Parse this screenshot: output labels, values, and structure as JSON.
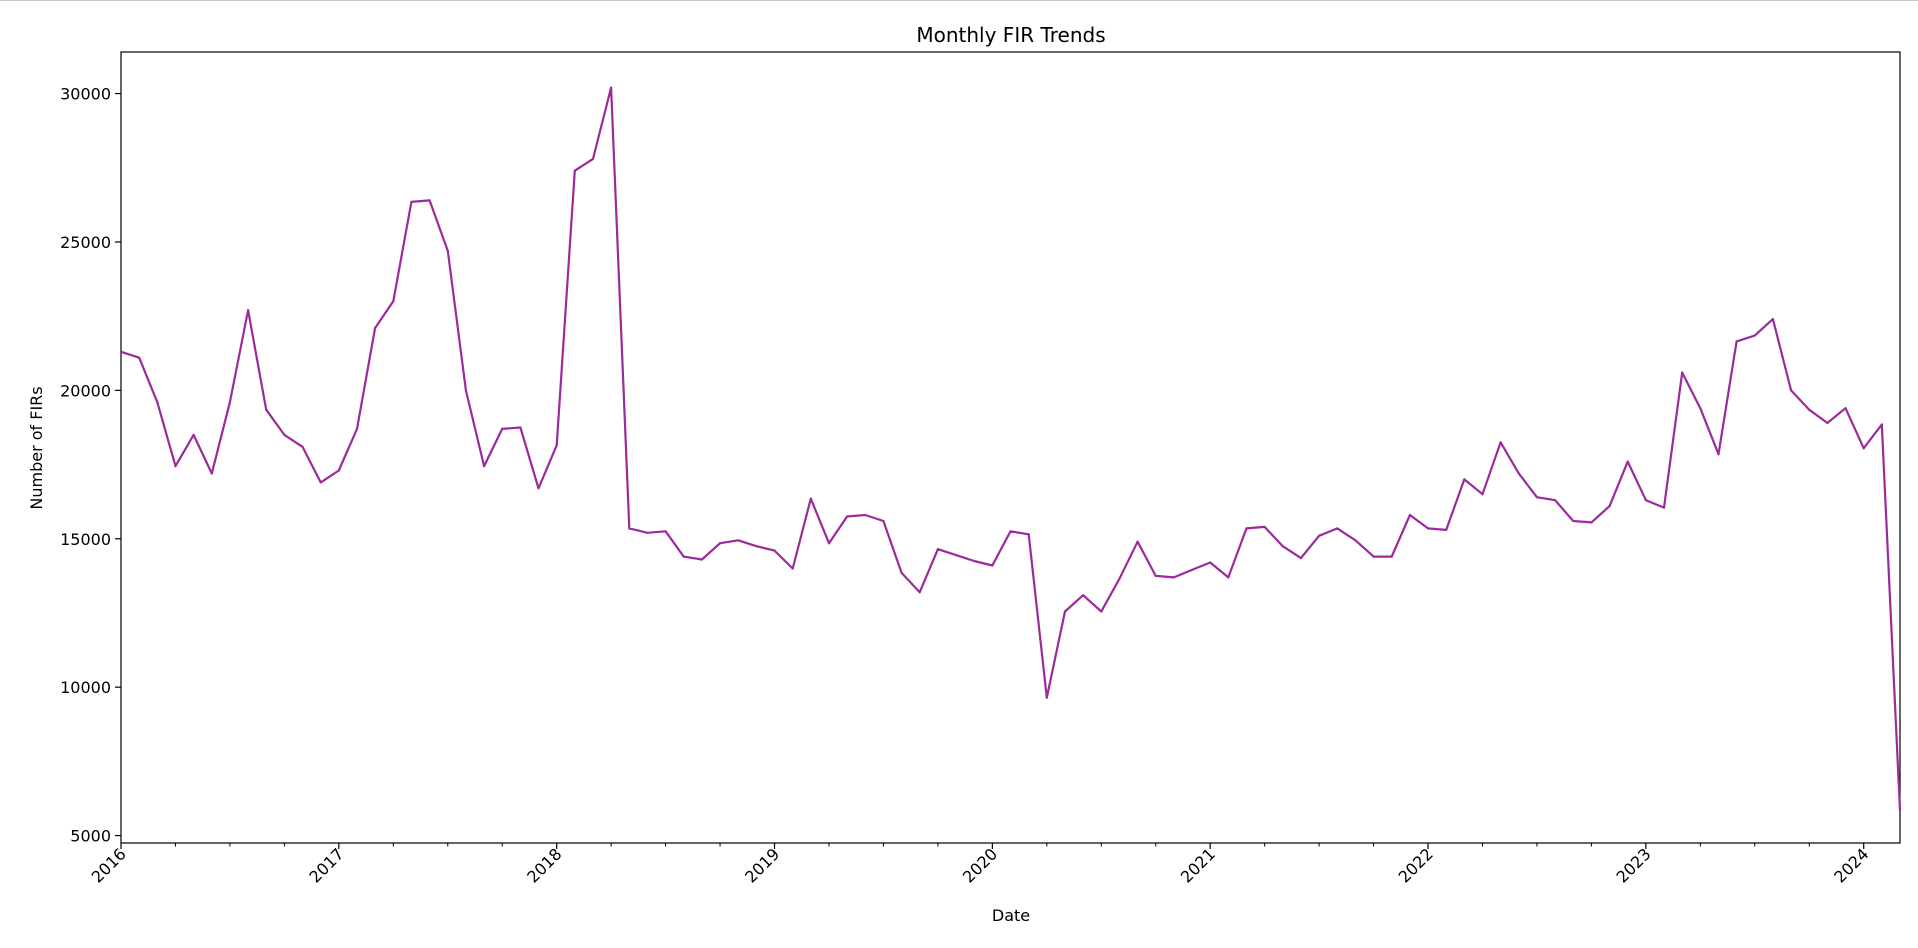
{
  "chart_data": {
    "type": "line",
    "title": "Monthly FIR Trends",
    "xlabel": "Date",
    "ylabel": "Number of FIRs",
    "color": "#9b2a9b",
    "grid": false,
    "legend": "none",
    "xlim": [
      "2016-01",
      "2024-03"
    ],
    "ylim": [
      4750,
      31400
    ],
    "yticks": [
      5000,
      10000,
      15000,
      20000,
      25000,
      30000
    ],
    "xticks": [
      "2016",
      "2017",
      "2018",
      "2019",
      "2020",
      "2021",
      "2022",
      "2023",
      "2024"
    ],
    "series": [
      {
        "x": [
          "2016-01",
          "2016-02",
          "2016-03",
          "2016-04",
          "2016-05",
          "2016-06",
          "2016-07",
          "2016-08",
          "2016-09",
          "2016-10",
          "2016-11",
          "2016-12",
          "2017-01",
          "2017-02",
          "2017-03",
          "2017-04",
          "2017-05",
          "2017-06",
          "2017-07",
          "2017-08",
          "2017-09",
          "2017-10",
          "2017-11",
          "2017-12",
          "2018-01",
          "2018-02",
          "2018-03",
          "2018-04",
          "2018-05",
          "2018-06",
          "2018-07",
          "2018-08",
          "2018-09",
          "2018-10",
          "2018-11",
          "2018-12",
          "2019-01",
          "2019-02",
          "2019-03",
          "2019-04",
          "2019-05",
          "2019-06",
          "2019-07",
          "2019-08",
          "2019-09",
          "2019-10",
          "2019-11",
          "2019-12",
          "2020-01",
          "2020-02",
          "2020-03",
          "2020-04",
          "2020-05",
          "2020-06",
          "2020-07",
          "2020-08",
          "2020-09",
          "2020-10",
          "2020-11",
          "2020-12",
          "2021-01",
          "2021-02",
          "2021-03",
          "2021-04",
          "2021-05",
          "2021-06",
          "2021-07",
          "2021-08",
          "2021-09",
          "2021-10",
          "2021-11",
          "2021-12",
          "2022-01",
          "2022-02",
          "2022-03",
          "2022-04",
          "2022-05",
          "2022-06",
          "2022-07",
          "2022-08",
          "2022-09",
          "2022-10",
          "2022-11",
          "2022-12",
          "2023-01",
          "2023-02",
          "2023-03",
          "2023-04",
          "2023-05",
          "2023-06",
          "2023-07",
          "2023-08",
          "2023-09",
          "2023-10",
          "2023-11",
          "2023-12",
          "2024-01",
          "2024-02",
          "2024-03"
        ],
        "values": [
          21300,
          21100,
          19600,
          17450,
          18500,
          17200,
          19600,
          22700,
          19350,
          18500,
          18100,
          16900,
          17300,
          18700,
          22100,
          23000,
          26350,
          26400,
          24700,
          20000,
          17450,
          18700,
          18750,
          16700,
          18150,
          27400,
          27800,
          30200,
          15350,
          15200,
          15250,
          14400,
          14300,
          14850,
          14950,
          14750,
          14600,
          14000,
          16350,
          14850,
          15750,
          15800,
          15600,
          13850,
          13200,
          14650,
          14450,
          14250,
          14100,
          15250,
          15150,
          9650,
          12550,
          13100,
          12550,
          13650,
          14900,
          13750,
          13700,
          13950,
          14200,
          13700,
          15350,
          15400,
          14750,
          14350,
          15100,
          15350,
          14950,
          14400,
          14400,
          15800,
          15350,
          15300,
          17000,
          16500,
          18250,
          17200,
          16400,
          16300,
          15600,
          15550,
          16100,
          17600,
          16300,
          16050,
          20600,
          19400,
          17850,
          21650,
          21850,
          22400,
          20000,
          19350,
          18900,
          19400,
          18050,
          18850,
          5850
        ]
      }
    ]
  }
}
